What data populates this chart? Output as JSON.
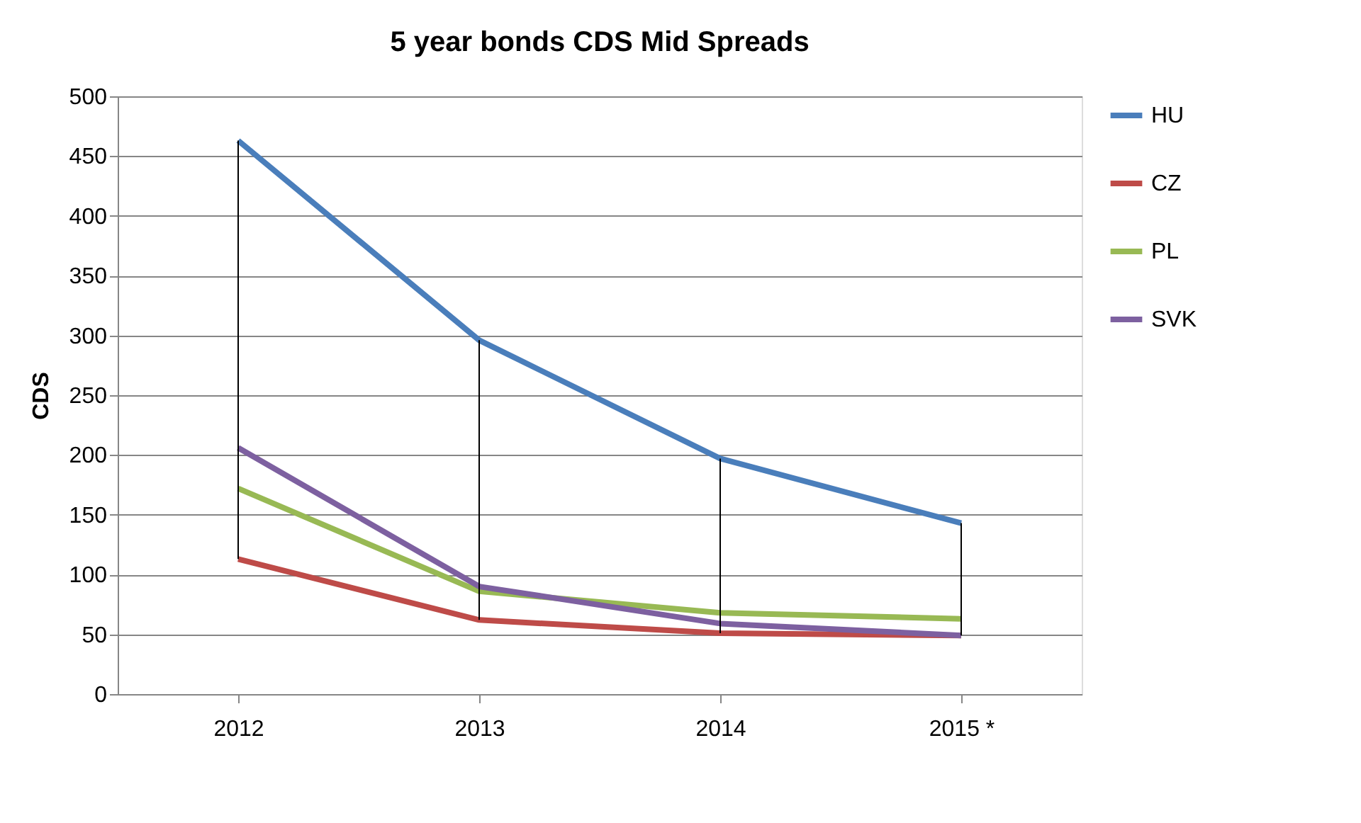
{
  "chart_data": {
    "type": "line",
    "title": "5 year bonds  CDS Mid Spreads",
    "ylabel": "CDS",
    "categories": [
      "2012",
      "2013",
      "2014",
      "2015 *"
    ],
    "series": [
      {
        "name": "HU",
        "color": "#4a7ebb",
        "values": [
          463,
          296,
          197,
          143
        ],
        "errors": [
          [
            113,
            463
          ],
          [
            62,
            296
          ],
          [
            51,
            197
          ],
          [
            49,
            143
          ]
        ]
      },
      {
        "name": "CZ",
        "color": "#be4b48",
        "values": [
          113,
          62,
          51,
          49
        ]
      },
      {
        "name": "PL",
        "color": "#98b954",
        "values": [
          172,
          86,
          68,
          63
        ]
      },
      {
        "name": "SVK",
        "color": "#7d60a0",
        "values": [
          206,
          90,
          59,
          49
        ]
      }
    ],
    "ylim": [
      0,
      500
    ],
    "yticks": [
      0,
      50,
      100,
      150,
      200,
      250,
      300,
      350,
      400,
      450,
      500
    ],
    "grid": "y",
    "legend": "right",
    "marker": "none",
    "line_style": "solid"
  }
}
